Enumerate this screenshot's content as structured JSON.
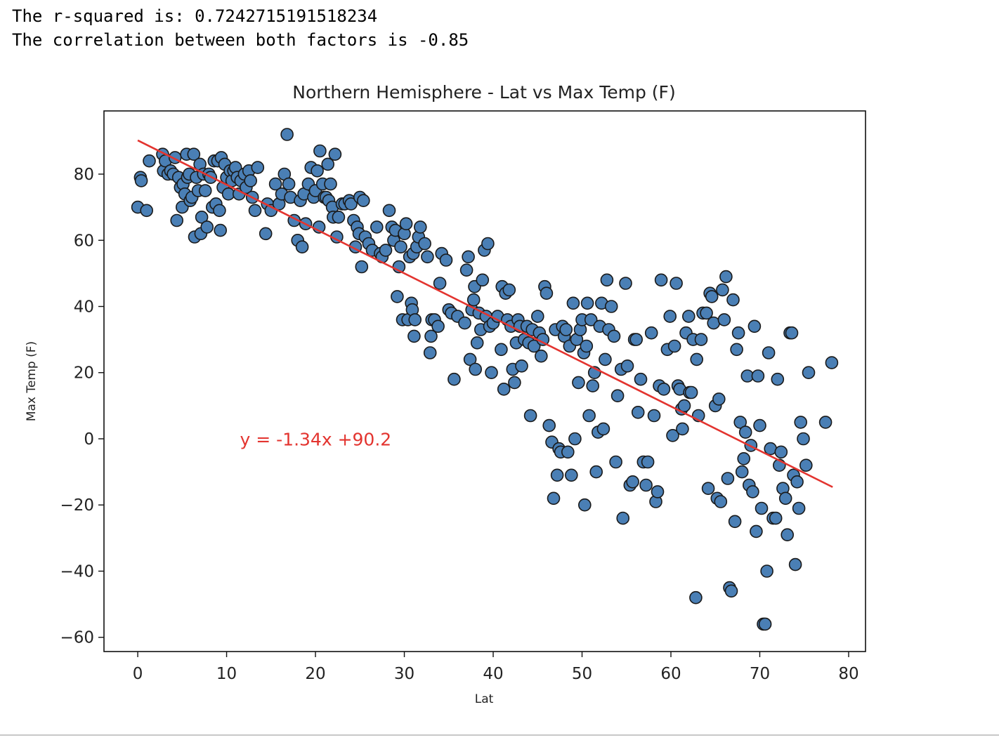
{
  "output": {
    "line1": "The r-squared is: 0.7242715191518234",
    "line2": "The correlation between both factors is -0.85"
  },
  "chart_data": {
    "type": "scatter",
    "title": "Northern Hemisphere - Lat vs Max Temp (F)",
    "xlabel": "Lat",
    "ylabel": "Max Temp (F)",
    "xlim": [
      -3.8,
      81.9
    ],
    "ylim": [
      -64.3,
      99.1
    ],
    "xticks": [
      0,
      10,
      20,
      30,
      40,
      50,
      60,
      70,
      80
    ],
    "yticks": [
      80,
      60,
      40,
      20,
      0,
      -20,
      -40,
      -60
    ],
    "grid": false,
    "marker_color": "#4a7fb5",
    "marker_edge_color": "#1a1a1a",
    "regression": {
      "slope": -1.34,
      "intercept": 90.2,
      "x_range": [
        0,
        78.2
      ],
      "color": "#e3342f",
      "equation": "y = -1.34x +90.2",
      "equation_position": [
        11.5,
        -2
      ]
    },
    "points": [
      [
        0,
        70
      ],
      [
        0.3,
        79
      ],
      [
        0.4,
        78
      ],
      [
        1,
        69
      ],
      [
        1.3,
        84
      ],
      [
        2.8,
        86
      ],
      [
        2.9,
        81
      ],
      [
        3.1,
        84
      ],
      [
        3.4,
        80
      ],
      [
        3.7,
        81
      ],
      [
        4,
        80
      ],
      [
        4.2,
        85
      ],
      [
        4.4,
        66
      ],
      [
        4.6,
        79
      ],
      [
        4.8,
        76
      ],
      [
        5,
        70
      ],
      [
        5.1,
        77
      ],
      [
        5.3,
        74
      ],
      [
        5.5,
        86
      ],
      [
        5.6,
        79
      ],
      [
        5.8,
        80
      ],
      [
        5.9,
        72
      ],
      [
        6.1,
        73
      ],
      [
        6.3,
        86
      ],
      [
        6.4,
        61
      ],
      [
        6.6,
        79
      ],
      [
        6.8,
        75
      ],
      [
        7,
        83
      ],
      [
        7.1,
        62
      ],
      [
        7.2,
        67
      ],
      [
        7.4,
        80
      ],
      [
        7.6,
        75
      ],
      [
        7.8,
        64
      ],
      [
        8,
        80
      ],
      [
        8.2,
        79
      ],
      [
        8.4,
        70
      ],
      [
        8.6,
        84
      ],
      [
        8.8,
        71
      ],
      [
        9,
        84
      ],
      [
        9.2,
        69
      ],
      [
        9.3,
        63
      ],
      [
        9.4,
        85
      ],
      [
        9.6,
        76
      ],
      [
        9.8,
        83
      ],
      [
        10,
        79
      ],
      [
        10.2,
        74
      ],
      [
        10.4,
        81
      ],
      [
        10.6,
        78
      ],
      [
        10.8,
        81
      ],
      [
        11,
        82
      ],
      [
        11.2,
        79
      ],
      [
        11.4,
        74
      ],
      [
        11.6,
        78
      ],
      [
        12,
        80
      ],
      [
        12.2,
        76
      ],
      [
        12.5,
        81
      ],
      [
        12.7,
        78
      ],
      [
        12.9,
        73
      ],
      [
        13.2,
        69
      ],
      [
        13.5,
        82
      ],
      [
        14.4,
        62
      ],
      [
        14.6,
        71
      ],
      [
        15,
        69
      ],
      [
        15.5,
        77
      ],
      [
        15.9,
        71
      ],
      [
        16.2,
        74
      ],
      [
        16.5,
        80
      ],
      [
        16.8,
        92
      ],
      [
        17,
        77
      ],
      [
        17.2,
        73
      ],
      [
        17.6,
        66
      ],
      [
        18,
        60
      ],
      [
        18.3,
        72
      ],
      [
        18.5,
        58
      ],
      [
        18.7,
        74
      ],
      [
        18.9,
        65
      ],
      [
        19.2,
        77
      ],
      [
        19.5,
        82
      ],
      [
        19.8,
        73
      ],
      [
        20,
        75
      ],
      [
        20.2,
        81
      ],
      [
        20.4,
        64
      ],
      [
        20.5,
        87
      ],
      [
        20.8,
        77
      ],
      [
        21,
        73
      ],
      [
        21.2,
        73
      ],
      [
        21.4,
        83
      ],
      [
        21.5,
        72
      ],
      [
        21.7,
        77
      ],
      [
        21.9,
        70
      ],
      [
        22,
        67
      ],
      [
        22.2,
        86
      ],
      [
        22.4,
        61
      ],
      [
        22.6,
        67
      ],
      [
        23,
        71
      ],
      [
        23.3,
        71
      ],
      [
        23.8,
        72
      ],
      [
        24,
        71
      ],
      [
        24.3,
        66
      ],
      [
        24.5,
        58
      ],
      [
        24.7,
        64
      ],
      [
        24.9,
        62
      ],
      [
        25,
        73
      ],
      [
        25.2,
        52
      ],
      [
        25.4,
        72
      ],
      [
        25.6,
        61
      ],
      [
        26,
        59
      ],
      [
        26.4,
        57
      ],
      [
        26.9,
        64
      ],
      [
        27.3,
        56
      ],
      [
        27.5,
        55
      ],
      [
        27.9,
        57
      ],
      [
        28.3,
        69
      ],
      [
        28.6,
        64
      ],
      [
        28.8,
        60
      ],
      [
        29,
        63
      ],
      [
        29.2,
        43
      ],
      [
        29.4,
        52
      ],
      [
        29.6,
        58
      ],
      [
        29.8,
        36
      ],
      [
        30,
        62
      ],
      [
        30.2,
        65
      ],
      [
        30.4,
        36
      ],
      [
        30.6,
        55
      ],
      [
        30.8,
        41
      ],
      [
        30.9,
        39
      ],
      [
        31,
        56
      ],
      [
        31.1,
        31
      ],
      [
        31.2,
        36
      ],
      [
        31.4,
        58
      ],
      [
        31.6,
        61
      ],
      [
        31.8,
        64
      ],
      [
        32.3,
        59
      ],
      [
        32.6,
        55
      ],
      [
        32.9,
        26
      ],
      [
        33,
        31
      ],
      [
        33.1,
        36
      ],
      [
        33.4,
        36
      ],
      [
        33.8,
        34
      ],
      [
        34,
        47
      ],
      [
        34.2,
        56
      ],
      [
        34.7,
        54
      ],
      [
        35,
        39
      ],
      [
        35.3,
        38
      ],
      [
        35.6,
        18
      ],
      [
        36,
        37
      ],
      [
        36.8,
        35
      ],
      [
        37,
        51
      ],
      [
        37.2,
        55
      ],
      [
        37.4,
        24
      ],
      [
        37.6,
        39
      ],
      [
        37.8,
        42
      ],
      [
        37.9,
        46
      ],
      [
        38,
        21
      ],
      [
        38.2,
        29
      ],
      [
        38.4,
        38
      ],
      [
        38.6,
        33
      ],
      [
        38.8,
        48
      ],
      [
        39,
        57
      ],
      [
        39.2,
        37
      ],
      [
        39.4,
        59
      ],
      [
        39.6,
        34
      ],
      [
        39.8,
        20
      ],
      [
        40,
        35
      ],
      [
        40.5,
        37
      ],
      [
        40.9,
        27
      ],
      [
        41,
        46
      ],
      [
        41.2,
        15
      ],
      [
        41.4,
        44
      ],
      [
        41.6,
        36
      ],
      [
        41.8,
        45
      ],
      [
        42,
        34
      ],
      [
        42.2,
        21
      ],
      [
        42.4,
        17
      ],
      [
        42.6,
        29
      ],
      [
        42.8,
        36
      ],
      [
        43,
        34
      ],
      [
        43.2,
        22
      ],
      [
        43.5,
        30
      ],
      [
        43.8,
        34
      ],
      [
        44,
        29
      ],
      [
        44.2,
        7
      ],
      [
        44.4,
        33
      ],
      [
        44.6,
        28
      ],
      [
        45,
        37
      ],
      [
        45.2,
        32
      ],
      [
        45.4,
        25
      ],
      [
        45.6,
        30
      ],
      [
        45.8,
        46
      ],
      [
        46,
        44
      ],
      [
        46.3,
        4
      ],
      [
        46.6,
        -1
      ],
      [
        46.8,
        -18
      ],
      [
        47,
        33
      ],
      [
        47.2,
        -11
      ],
      [
        47.4,
        -3
      ],
      [
        47.6,
        -4
      ],
      [
        47.8,
        34
      ],
      [
        48,
        31
      ],
      [
        48.2,
        33
      ],
      [
        48.4,
        -4
      ],
      [
        48.6,
        28
      ],
      [
        48.8,
        -11
      ],
      [
        49,
        41
      ],
      [
        49.2,
        0
      ],
      [
        49.4,
        30
      ],
      [
        49.6,
        17
      ],
      [
        49.8,
        33
      ],
      [
        50,
        36
      ],
      [
        50.2,
        26
      ],
      [
        50.3,
        -20
      ],
      [
        50.5,
        28
      ],
      [
        50.6,
        41
      ],
      [
        50.8,
        7
      ],
      [
        51,
        36
      ],
      [
        51.2,
        16
      ],
      [
        51.4,
        20
      ],
      [
        51.6,
        -10
      ],
      [
        51.8,
        2
      ],
      [
        52,
        34
      ],
      [
        52.2,
        41
      ],
      [
        52.4,
        3
      ],
      [
        52.6,
        24
      ],
      [
        52.8,
        48
      ],
      [
        53,
        33
      ],
      [
        53.3,
        40
      ],
      [
        53.6,
        31
      ],
      [
        53.8,
        -7
      ],
      [
        54,
        13
      ],
      [
        54.4,
        21
      ],
      [
        54.6,
        -24
      ],
      [
        54.9,
        47
      ],
      [
        55.1,
        22
      ],
      [
        55.4,
        -14
      ],
      [
        55.7,
        -13
      ],
      [
        55.9,
        30
      ],
      [
        56.1,
        30
      ],
      [
        56.3,
        8
      ],
      [
        56.6,
        18
      ],
      [
        56.9,
        -7
      ],
      [
        57.2,
        -14
      ],
      [
        57.4,
        -7
      ],
      [
        57.8,
        32
      ],
      [
        58.1,
        7
      ],
      [
        58.3,
        -19
      ],
      [
        58.5,
        -16
      ],
      [
        58.7,
        16
      ],
      [
        58.9,
        48
      ],
      [
        59.2,
        15
      ],
      [
        59.6,
        27
      ],
      [
        59.9,
        37
      ],
      [
        60.2,
        1
      ],
      [
        60.4,
        28
      ],
      [
        60.6,
        47
      ],
      [
        60.8,
        16
      ],
      [
        61,
        15
      ],
      [
        61.2,
        9
      ],
      [
        61.3,
        3
      ],
      [
        61.5,
        10
      ],
      [
        61.7,
        32
      ],
      [
        62,
        37
      ],
      [
        62.1,
        14
      ],
      [
        62.3,
        14
      ],
      [
        62.5,
        30
      ],
      [
        62.8,
        -48
      ],
      [
        62.9,
        24
      ],
      [
        63.1,
        7
      ],
      [
        63.4,
        30
      ],
      [
        63.6,
        38
      ],
      [
        64,
        38
      ],
      [
        64.2,
        -15
      ],
      [
        64.4,
        44
      ],
      [
        64.6,
        43
      ],
      [
        64.8,
        35
      ],
      [
        65,
        10
      ],
      [
        65.2,
        -18
      ],
      [
        65.4,
        12
      ],
      [
        65.6,
        -19
      ],
      [
        65.8,
        45
      ],
      [
        66,
        36
      ],
      [
        66.2,
        49
      ],
      [
        66.4,
        -12
      ],
      [
        66.6,
        -45
      ],
      [
        66.8,
        -46
      ],
      [
        67,
        42
      ],
      [
        67.2,
        -25
      ],
      [
        67.4,
        27
      ],
      [
        67.6,
        32
      ],
      [
        67.8,
        5
      ],
      [
        68,
        -10
      ],
      [
        68.2,
        -6
      ],
      [
        68.4,
        2
      ],
      [
        68.6,
        19
      ],
      [
        68.8,
        -14
      ],
      [
        69,
        -2
      ],
      [
        69.2,
        -16
      ],
      [
        69.4,
        34
      ],
      [
        69.6,
        -28
      ],
      [
        69.8,
        19
      ],
      [
        70,
        4
      ],
      [
        70.2,
        -21
      ],
      [
        70.4,
        -56
      ],
      [
        70.6,
        -56
      ],
      [
        70.8,
        -40
      ],
      [
        71,
        26
      ],
      [
        71.2,
        -3
      ],
      [
        71.5,
        -24
      ],
      [
        71.8,
        -24
      ],
      [
        72,
        18
      ],
      [
        72.2,
        -8
      ],
      [
        72.4,
        -4
      ],
      [
        72.6,
        -15
      ],
      [
        72.9,
        -18
      ],
      [
        73.1,
        -29
      ],
      [
        73.4,
        32
      ],
      [
        73.6,
        32
      ],
      [
        73.8,
        -11
      ],
      [
        74,
        -38
      ],
      [
        74.2,
        -13
      ],
      [
        74.4,
        -21
      ],
      [
        74.6,
        5
      ],
      [
        74.9,
        0
      ],
      [
        75.2,
        -8
      ],
      [
        75.5,
        20
      ],
      [
        77.4,
        5
      ],
      [
        78.1,
        23
      ]
    ]
  }
}
